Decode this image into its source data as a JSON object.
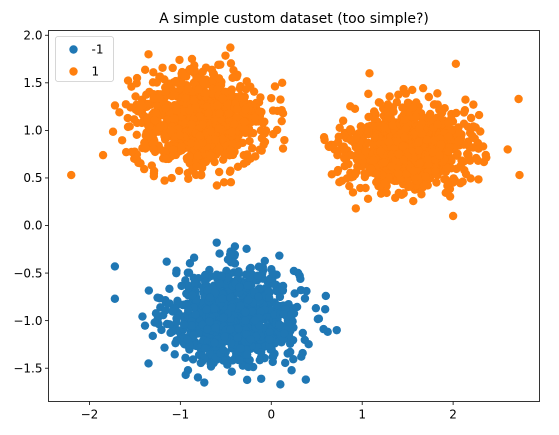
{
  "chart_data": {
    "type": "scatter",
    "title": "A simple custom dataset (too simple?)",
    "xlabel": "",
    "ylabel": "",
    "xlim": [
      -2.45,
      2.95
    ],
    "ylim": [
      -1.85,
      2.05
    ],
    "x_ticks": [
      -2,
      -1,
      0,
      1,
      2
    ],
    "y_ticks": [
      -1.5,
      -1.0,
      -0.5,
      0.0,
      0.5,
      1.0,
      1.5,
      2.0
    ],
    "x_tick_labels": [
      "−2",
      "−1",
      "0",
      "1",
      "2"
    ],
    "y_tick_labels": [
      "−1.5",
      "−1.0",
      "−0.5",
      "0.0",
      "0.5",
      "1.0",
      "1.5",
      "2.0"
    ],
    "grid": false,
    "legend_position": "top-left",
    "series": [
      {
        "name": "-1",
        "color": "#1f77b4",
        "cluster_center": [
          -0.4,
          -0.95
        ],
        "spread": [
          0.35,
          0.25
        ],
        "count": 1000,
        "points": [
          [
            -1.72,
            -0.43
          ],
          [
            -1.72,
            -0.77
          ],
          [
            -1.35,
            -1.45
          ],
          [
            -0.4,
            -0.22
          ],
          [
            0.72,
            -1.1
          ],
          [
            0.1,
            -1.67
          ],
          [
            0.38,
            -1.62
          ],
          [
            -1.15,
            -0.38
          ],
          [
            -0.6,
            -0.18
          ],
          [
            0.6,
            -0.74
          ]
        ]
      },
      {
        "name": "1",
        "color": "#ff7f0e",
        "count": 2000,
        "clusters": [
          {
            "center": [
              -0.8,
              1.1
            ],
            "spread": [
              0.35,
              0.25
            ]
          },
          {
            "center": [
              1.5,
              0.82
            ],
            "spread": [
              0.33,
              0.22
            ]
          }
        ],
        "points": [
          [
            -2.2,
            0.53
          ],
          [
            -1.35,
            1.8
          ],
          [
            -0.45,
            1.87
          ],
          [
            0.12,
            1.5
          ],
          [
            -1.85,
            0.74
          ],
          [
            1.08,
            1.6
          ],
          [
            2.03,
            1.7
          ],
          [
            2.72,
            1.33
          ],
          [
            2.73,
            0.53
          ],
          [
            2.6,
            0.8
          ],
          [
            0.93,
            0.18
          ],
          [
            2.0,
            0.1
          ]
        ]
      }
    ]
  }
}
